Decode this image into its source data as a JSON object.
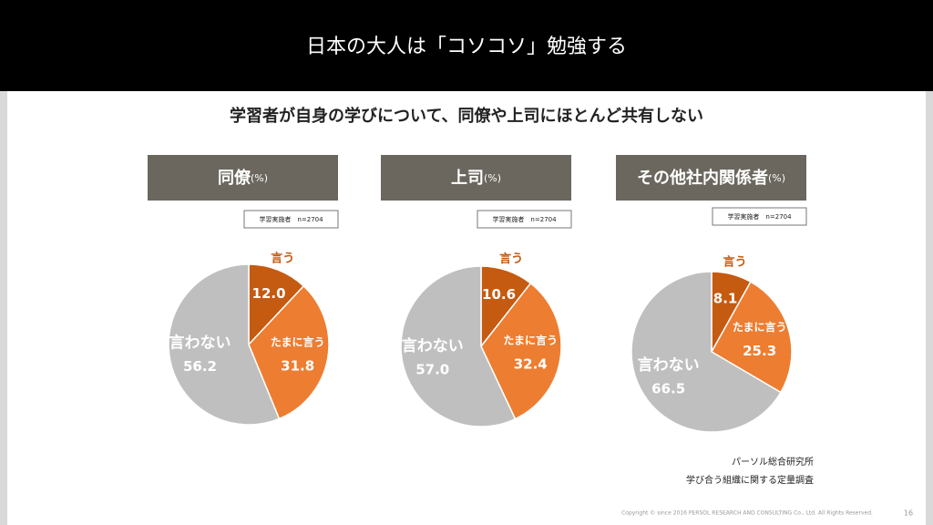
{
  "header": {
    "title": "日本の大人は「コソコソ」勉強する"
  },
  "subtitle": "学習者が自身の学びについて、同僚や上司にほとんど共有しない",
  "chart_data": [
    {
      "type": "pie",
      "title": "同僚",
      "unit": "(%)",
      "note": "学習実施者　n=2704",
      "categories": [
        "言う",
        "たまに言う",
        "言わない"
      ],
      "values": [
        12.0,
        31.8,
        56.2
      ],
      "value_labels": [
        "12.0",
        "31.8",
        "56.2"
      ],
      "colors": [
        "#c55a11",
        "#ed7d31",
        "#bfbfbf"
      ]
    },
    {
      "type": "pie",
      "title": "上司",
      "unit": "(%)",
      "note": "学習実施者　n=2704",
      "categories": [
        "言う",
        "たまに言う",
        "言わない"
      ],
      "values": [
        10.6,
        32.4,
        57.0
      ],
      "value_labels": [
        "10.6",
        "32.4",
        "57.0"
      ],
      "colors": [
        "#c55a11",
        "#ed7d31",
        "#bfbfbf"
      ]
    },
    {
      "type": "pie",
      "title": "その他社内関係者",
      "unit": "(%)",
      "note": "学習実施者　n=2704",
      "categories": [
        "言う",
        "たまに言う",
        "言わない"
      ],
      "values": [
        8.1,
        25.3,
        66.5
      ],
      "value_labels": [
        "8.1",
        "25.3",
        "66.5"
      ],
      "colors": [
        "#c55a11",
        "#ed7d31",
        "#bfbfbf"
      ]
    }
  ],
  "source": [
    "パーソル総合研究所",
    "学び合う組織に関する定量調査"
  ],
  "footer": {
    "copyright": "Copyright © since 2016  PERSOL  RESEARCH AND CONSULTING Co., Ltd. All Rights Reserved.",
    "page": "16"
  }
}
